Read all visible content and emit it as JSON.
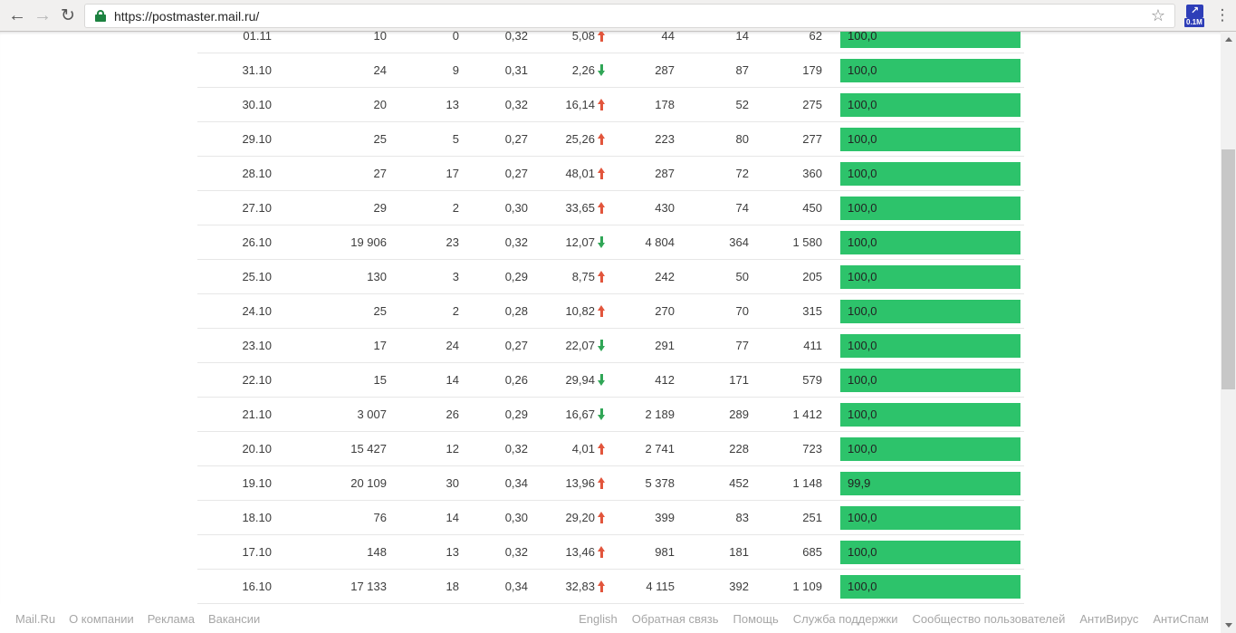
{
  "browser": {
    "url": "https://postmaster.mail.ru/",
    "extension_badge": "0.1M",
    "icons": {
      "back": "←",
      "forward": "→",
      "reload": "↻",
      "star": "☆",
      "menu": "⋮",
      "extension_arrow": "↗"
    }
  },
  "colors": {
    "bar_green": "#2dc36b",
    "trend_up": "#e2553c",
    "trend_down": "#30a656",
    "lock_green": "#1c8240",
    "extension_blue": "#2e3eb8"
  },
  "table": {
    "rows": [
      {
        "date": "01.11",
        "cols": [
          "10",
          "0",
          "0,32"
        ],
        "trend": {
          "value": "5,08",
          "dir": "up"
        },
        "cols2": [
          "44",
          "14",
          "62"
        ],
        "bar": {
          "label": "100,0",
          "pct": 100
        }
      },
      {
        "date": "31.10",
        "cols": [
          "24",
          "9",
          "0,31"
        ],
        "trend": {
          "value": "2,26",
          "dir": "down"
        },
        "cols2": [
          "287",
          "87",
          "179"
        ],
        "bar": {
          "label": "100,0",
          "pct": 100
        }
      },
      {
        "date": "30.10",
        "cols": [
          "20",
          "13",
          "0,32"
        ],
        "trend": {
          "value": "16,14",
          "dir": "up"
        },
        "cols2": [
          "178",
          "52",
          "275"
        ],
        "bar": {
          "label": "100,0",
          "pct": 100
        }
      },
      {
        "date": "29.10",
        "cols": [
          "25",
          "5",
          "0,27"
        ],
        "trend": {
          "value": "25,26",
          "dir": "up"
        },
        "cols2": [
          "223",
          "80",
          "277"
        ],
        "bar": {
          "label": "100,0",
          "pct": 100
        }
      },
      {
        "date": "28.10",
        "cols": [
          "27",
          "17",
          "0,27"
        ],
        "trend": {
          "value": "48,01",
          "dir": "up"
        },
        "cols2": [
          "287",
          "72",
          "360"
        ],
        "bar": {
          "label": "100,0",
          "pct": 100
        }
      },
      {
        "date": "27.10",
        "cols": [
          "29",
          "2",
          "0,30"
        ],
        "trend": {
          "value": "33,65",
          "dir": "up"
        },
        "cols2": [
          "430",
          "74",
          "450"
        ],
        "bar": {
          "label": "100,0",
          "pct": 100
        }
      },
      {
        "date": "26.10",
        "cols": [
          "19 906",
          "23",
          "0,32"
        ],
        "trend": {
          "value": "12,07",
          "dir": "down"
        },
        "cols2": [
          "4 804",
          "364",
          "1 580"
        ],
        "bar": {
          "label": "100,0",
          "pct": 100
        }
      },
      {
        "date": "25.10",
        "cols": [
          "130",
          "3",
          "0,29"
        ],
        "trend": {
          "value": "8,75",
          "dir": "up"
        },
        "cols2": [
          "242",
          "50",
          "205"
        ],
        "bar": {
          "label": "100,0",
          "pct": 100
        }
      },
      {
        "date": "24.10",
        "cols": [
          "25",
          "2",
          "0,28"
        ],
        "trend": {
          "value": "10,82",
          "dir": "up"
        },
        "cols2": [
          "270",
          "70",
          "315"
        ],
        "bar": {
          "label": "100,0",
          "pct": 100
        }
      },
      {
        "date": "23.10",
        "cols": [
          "17",
          "24",
          "0,27"
        ],
        "trend": {
          "value": "22,07",
          "dir": "down"
        },
        "cols2": [
          "291",
          "77",
          "411"
        ],
        "bar": {
          "label": "100,0",
          "pct": 100
        }
      },
      {
        "date": "22.10",
        "cols": [
          "15",
          "14",
          "0,26"
        ],
        "trend": {
          "value": "29,94",
          "dir": "down"
        },
        "cols2": [
          "412",
          "171",
          "579"
        ],
        "bar": {
          "label": "100,0",
          "pct": 100
        }
      },
      {
        "date": "21.10",
        "cols": [
          "3 007",
          "26",
          "0,29"
        ],
        "trend": {
          "value": "16,67",
          "dir": "down"
        },
        "cols2": [
          "2 189",
          "289",
          "1 412"
        ],
        "bar": {
          "label": "100,0",
          "pct": 100
        }
      },
      {
        "date": "20.10",
        "cols": [
          "15 427",
          "12",
          "0,32"
        ],
        "trend": {
          "value": "4,01",
          "dir": "up"
        },
        "cols2": [
          "2 741",
          "228",
          "723"
        ],
        "bar": {
          "label": "100,0",
          "pct": 100
        }
      },
      {
        "date": "19.10",
        "cols": [
          "20 109",
          "30",
          "0,34"
        ],
        "trend": {
          "value": "13,96",
          "dir": "up"
        },
        "cols2": [
          "5 378",
          "452",
          "1 148"
        ],
        "bar": {
          "label": "99,9",
          "pct": 99.9
        }
      },
      {
        "date": "18.10",
        "cols": [
          "76",
          "14",
          "0,30"
        ],
        "trend": {
          "value": "29,20",
          "dir": "up"
        },
        "cols2": [
          "399",
          "83",
          "251"
        ],
        "bar": {
          "label": "100,0",
          "pct": 100
        }
      },
      {
        "date": "17.10",
        "cols": [
          "148",
          "13",
          "0,32"
        ],
        "trend": {
          "value": "13,46",
          "dir": "up"
        },
        "cols2": [
          "981",
          "181",
          "685"
        ],
        "bar": {
          "label": "100,0",
          "pct": 100
        }
      },
      {
        "date": "16.10",
        "cols": [
          "17 133",
          "18",
          "0,34"
        ],
        "trend": {
          "value": "32,83",
          "dir": "up"
        },
        "cols2": [
          "4 115",
          "392",
          "1 109"
        ],
        "bar": {
          "label": "100,0",
          "pct": 100
        }
      }
    ]
  },
  "footer": {
    "left": [
      "Mail.Ru",
      "О компании",
      "Реклама",
      "Вакансии"
    ],
    "right": [
      "English",
      "Обратная связь",
      "Помощь",
      "Служба поддержки",
      "Сообщество пользователей",
      "АнтиВирус",
      "АнтиСпам"
    ]
  }
}
